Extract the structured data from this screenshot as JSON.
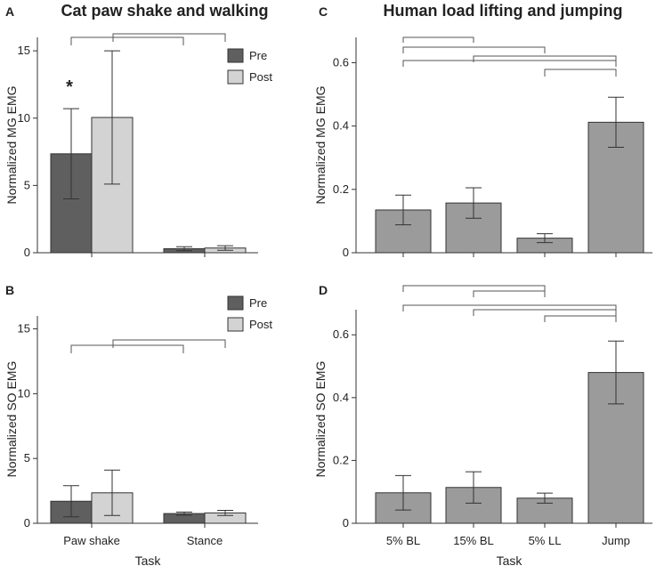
{
  "chart_data": [
    {
      "id": "A",
      "type": "bar",
      "panel_letter": "A",
      "title": "Cat paw shake and walking",
      "ylabel": "Normalized MG EMG",
      "xlabel": "",
      "ylim": [
        0,
        16
      ],
      "yticks": [
        0,
        5,
        10,
        15
      ],
      "categories": [
        "Paw shake",
        "Stance"
      ],
      "show_category_labels": false,
      "series": [
        {
          "name": "Pre",
          "color": "#5f5f5f",
          "values": [
            7.35,
            0.3
          ],
          "err": [
            3.35,
            0.15
          ]
        },
        {
          "name": "Post",
          "color": "#d3d3d3",
          "values": [
            10.05,
            0.35
          ],
          "err": [
            4.95,
            0.17
          ]
        }
      ],
      "legend": [
        "Pre",
        "Post"
      ],
      "annotation": "*"
    },
    {
      "id": "B",
      "type": "bar",
      "panel_letter": "B",
      "title": "",
      "ylabel": "Normalized SO EMG",
      "xlabel": "Task",
      "ylim": [
        0,
        16
      ],
      "yticks": [
        0,
        5,
        10,
        15
      ],
      "categories": [
        "Paw shake",
        "Stance"
      ],
      "show_category_labels": true,
      "series": [
        {
          "name": "Pre",
          "color": "#5f5f5f",
          "values": [
            1.7,
            0.75
          ],
          "err": [
            1.2,
            0.12
          ]
        },
        {
          "name": "Post",
          "color": "#d3d3d3",
          "values": [
            2.35,
            0.8
          ],
          "err": [
            1.75,
            0.2
          ]
        }
      ],
      "legend": [
        "Pre",
        "Post"
      ],
      "annotation": ""
    },
    {
      "id": "C",
      "type": "bar",
      "panel_letter": "C",
      "title": "Human load lifting and jumping",
      "ylabel": "Normalized MG EMG",
      "xlabel": "",
      "ylim": [
        0,
        0.68
      ],
      "yticks": [
        0,
        0.2,
        0.4,
        0.6
      ],
      "categories": [
        "5% BL",
        "15% BL",
        "5% LL",
        "Jump"
      ],
      "show_category_labels": false,
      "series": [
        {
          "name": "",
          "color": "#9b9b9b",
          "values": [
            0.135,
            0.157,
            0.046,
            0.412
          ],
          "err": [
            0.047,
            0.048,
            0.014,
            0.079
          ]
        }
      ]
    },
    {
      "id": "D",
      "type": "bar",
      "panel_letter": "D",
      "title": "",
      "ylabel": "Normalized SO EMG",
      "xlabel": "Task",
      "ylim": [
        0,
        0.68
      ],
      "yticks": [
        0,
        0.2,
        0.4,
        0.6
      ],
      "categories": [
        "5% BL",
        "15% BL",
        "5% LL",
        "Jump"
      ],
      "show_category_labels": true,
      "series": [
        {
          "name": "",
          "color": "#9b9b9b",
          "values": [
            0.097,
            0.114,
            0.08,
            0.48
          ],
          "err": [
            0.055,
            0.05,
            0.016,
            0.1
          ]
        }
      ]
    }
  ]
}
